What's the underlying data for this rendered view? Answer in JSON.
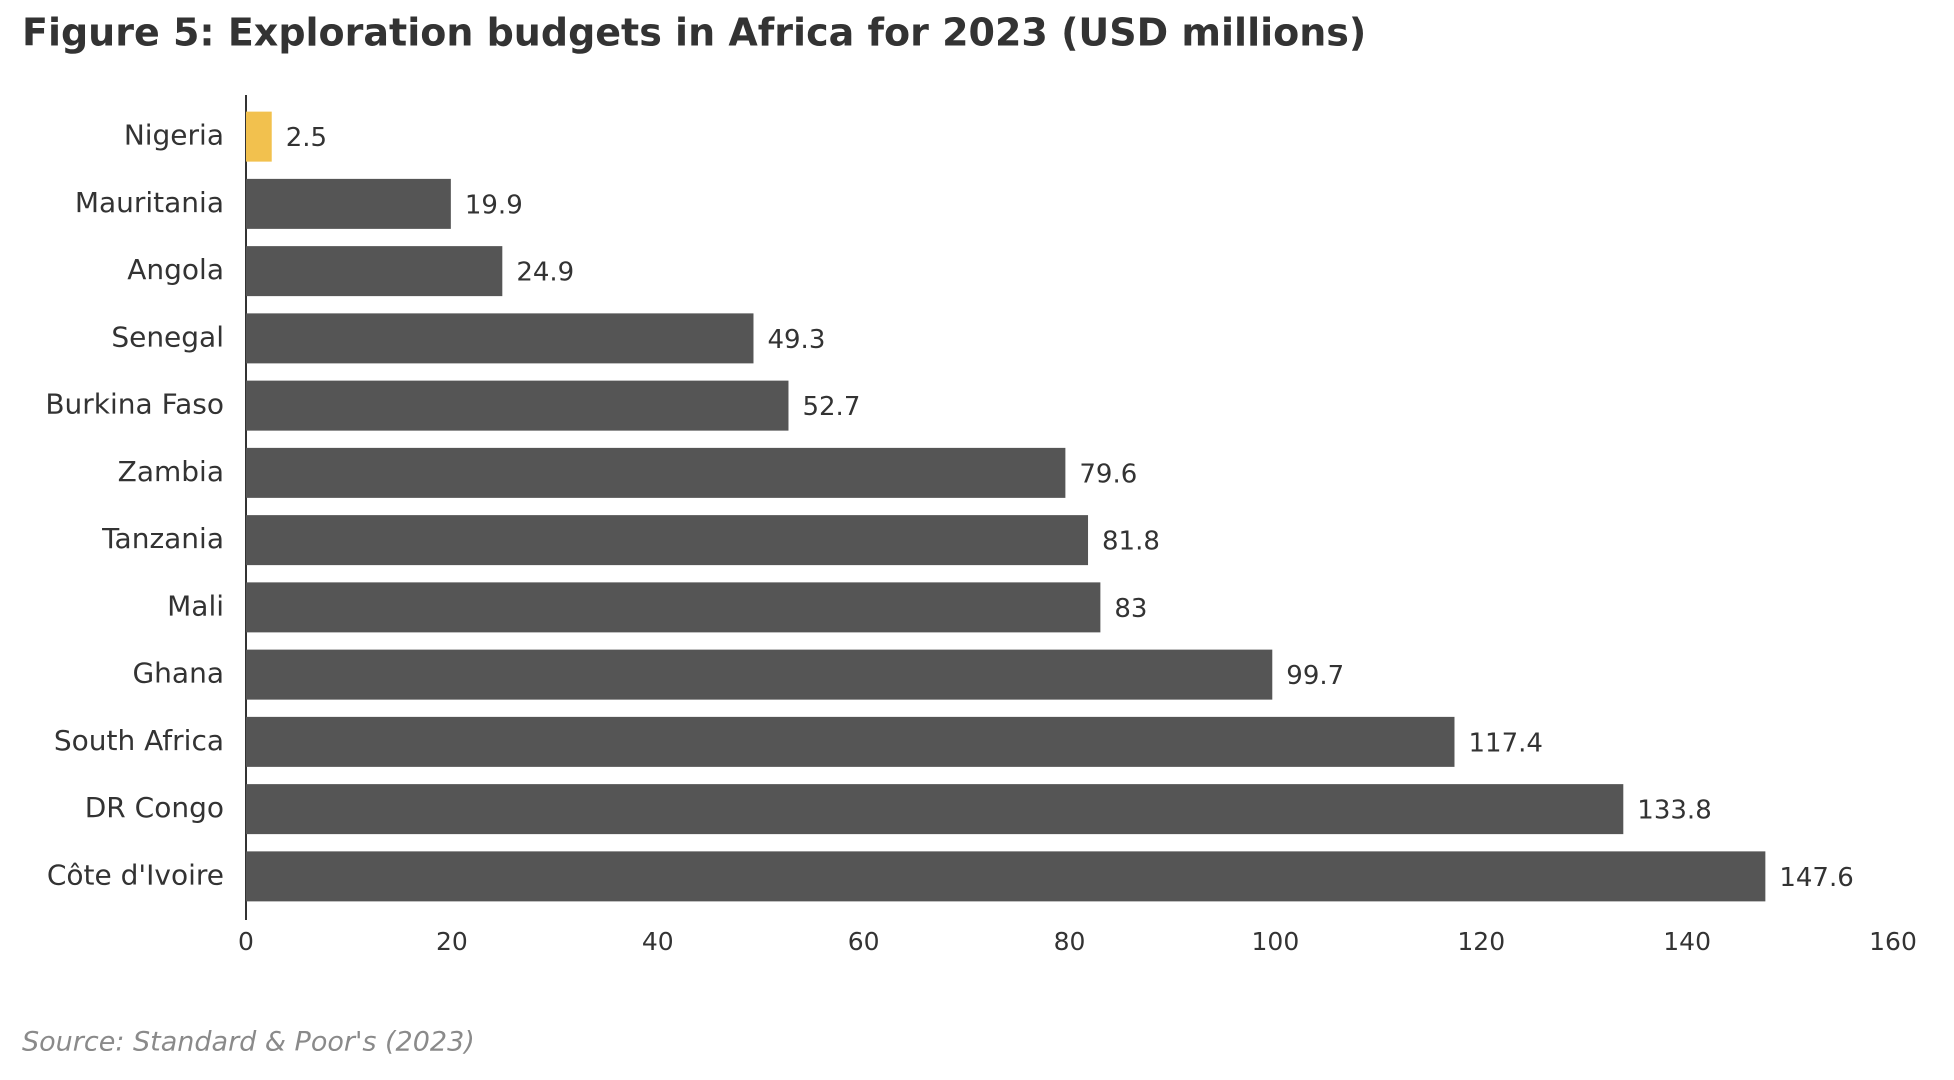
{
  "chart_data": {
    "type": "bar",
    "orientation": "horizontal",
    "title": "Figure 5: Exploration budgets in Africa for 2023 (USD millions)",
    "source": "Source: Standard & Poor's (2023)",
    "categories": [
      "Nigeria",
      "Mauritania",
      "Angola",
      "Senegal",
      "Burkina Faso",
      "Zambia",
      "Tanzania",
      "Mali",
      "Ghana",
      "South Africa",
      "DR Congo",
      "Côte d'Ivoire"
    ],
    "values": [
      2.5,
      19.9,
      24.9,
      49.3,
      52.7,
      79.6,
      81.8,
      83,
      99.7,
      117.4,
      133.8,
      147.6
    ],
    "colors": [
      "#f2c14e",
      "#555555",
      "#555555",
      "#555555",
      "#555555",
      "#555555",
      "#555555",
      "#555555",
      "#555555",
      "#555555",
      "#555555",
      "#555555"
    ],
    "xlim": [
      0,
      160
    ],
    "xticks": [
      0,
      20,
      40,
      60,
      80,
      100,
      120,
      140,
      160
    ],
    "grid": false
  }
}
